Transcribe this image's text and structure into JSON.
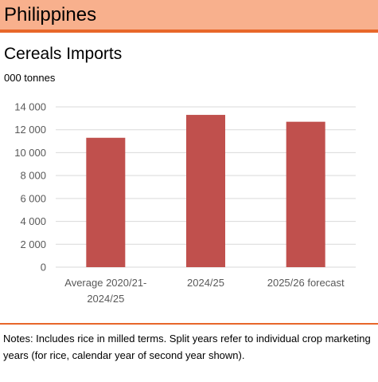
{
  "header": {
    "title": "Philippines"
  },
  "colors": {
    "header_bg": "#f8b08d",
    "accent": "#e8672a",
    "bar": "#c0504d",
    "grid": "#d9d9d9"
  },
  "chart_data": {
    "type": "bar",
    "title": "Cereals Imports",
    "ylabel": "000 tonnes",
    "xlabel": "",
    "categories": [
      [
        "Average 2020/21-",
        "2024/25"
      ],
      [
        "2024/25"
      ],
      [
        "2025/26 forecast"
      ]
    ],
    "values": [
      11300,
      13300,
      12700
    ],
    "ylim": [
      0,
      14000
    ],
    "yticks": [
      0,
      2000,
      4000,
      6000,
      8000,
      10000,
      12000,
      14000
    ],
    "ytick_labels": [
      "0",
      "2 000",
      "4 000",
      "6 000",
      "8 000",
      "10 000",
      "12 000",
      "14 000"
    ],
    "grid": true,
    "legend": "none"
  },
  "notes": "Notes: Includes rice in milled terms. Split years refer to individual crop marketing years (for rice, calendar  year of second year shown)."
}
